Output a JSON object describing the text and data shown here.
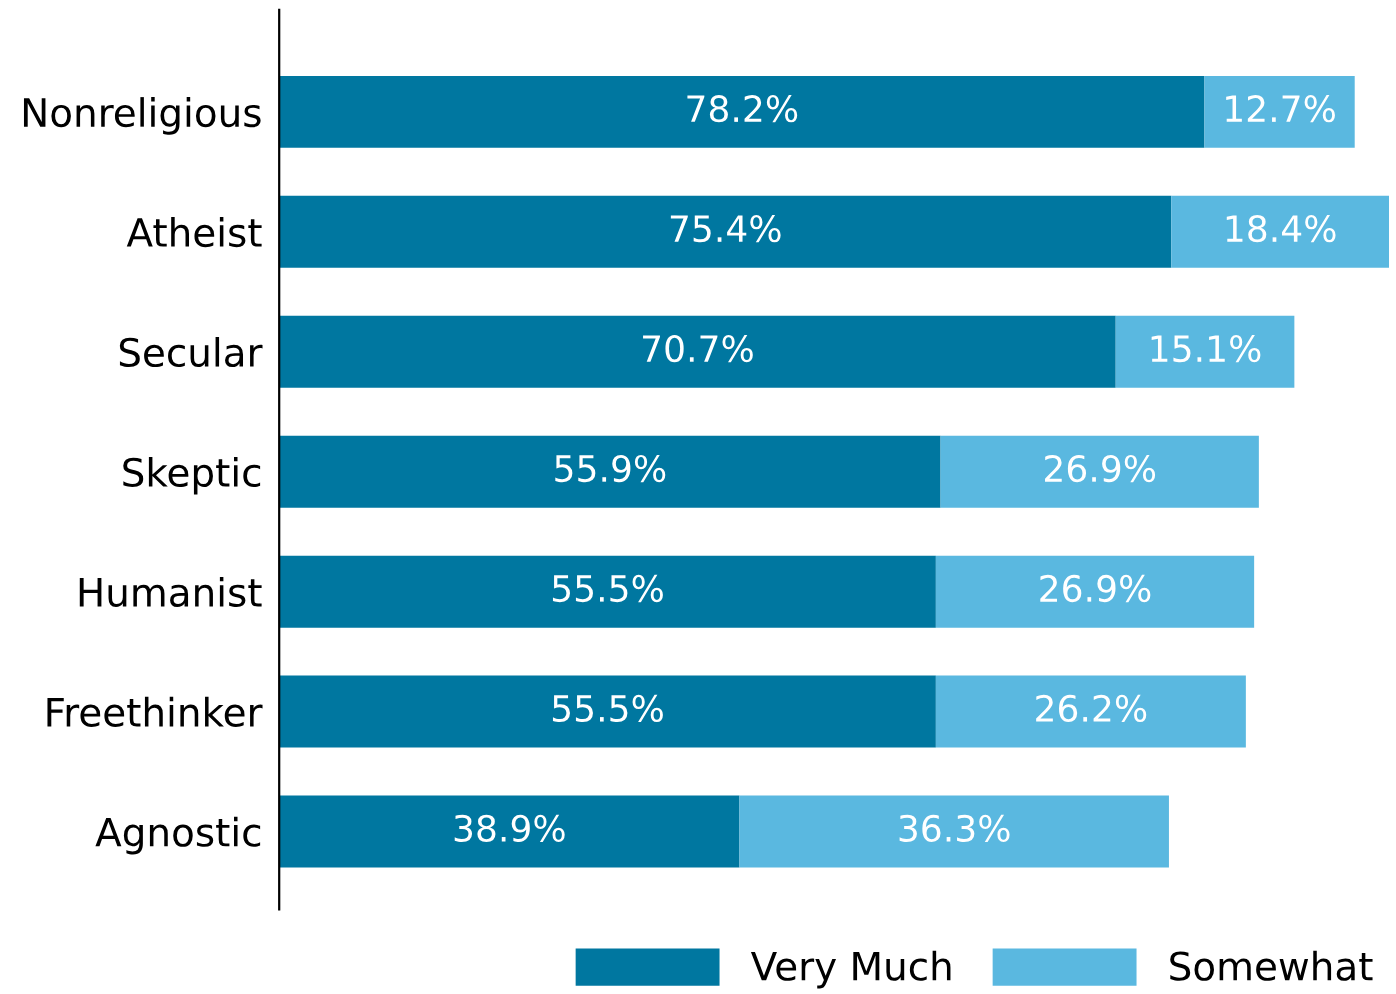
{
  "chart_data": {
    "type": "bar",
    "orientation": "horizontal",
    "stacked": true,
    "legend": "bottom",
    "grid": false,
    "categories": [
      "Nonreligious",
      "Atheist",
      "Secular",
      "Skeptic",
      "Humanist",
      "Freethinker",
      "Agnostic"
    ],
    "series": [
      {
        "name": "Very Much",
        "color": "#0077a0",
        "values": [
          78.2,
          75.4,
          70.7,
          55.9,
          55.5,
          55.5,
          38.9
        ],
        "value_labels": [
          "78.2%",
          "75.4%",
          "70.7%",
          "55.9%",
          "55.5%",
          "55.5%",
          "38.9%"
        ]
      },
      {
        "name": "Somewhat",
        "color": "#5ab8e0",
        "values": [
          12.7,
          18.4,
          15.1,
          26.9,
          26.9,
          26.2,
          36.3
        ],
        "value_labels": [
          "12.7%",
          "18.4%",
          "15.1%",
          "26.9%",
          "26.9%",
          "26.2%",
          "36.3%"
        ]
      }
    ]
  }
}
